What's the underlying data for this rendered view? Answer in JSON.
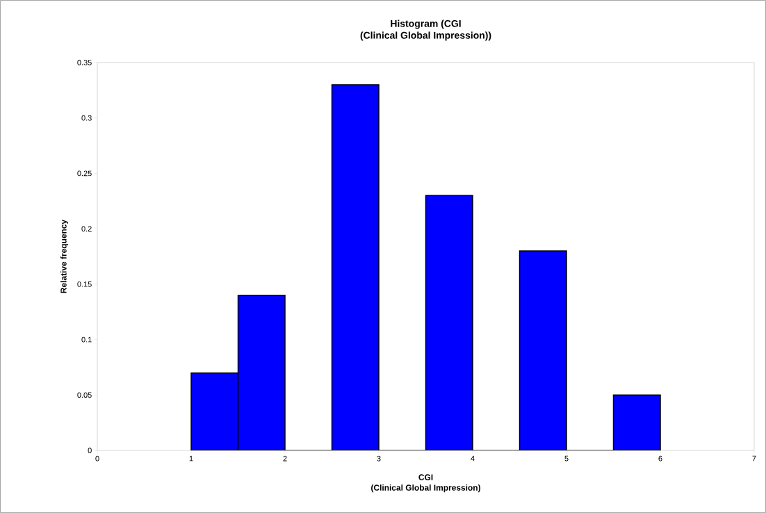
{
  "chart_data": {
    "type": "histogram",
    "title": "Histogram (CGI\n(Clinical Global Impression))",
    "xlabel": "CGI\n(Clinical Global Impression)",
    "ylabel": "Relative frequency",
    "bins": [
      1,
      1.5,
      2,
      2.5,
      3,
      3.5,
      4,
      4.5,
      5,
      5.5,
      6
    ],
    "values": [
      0.07,
      0.14,
      0,
      0.33,
      0,
      0.23,
      0,
      0.18,
      0,
      0.05
    ],
    "color": "#0000ff",
    "xlim": [
      0,
      7
    ],
    "xticks": [
      0,
      1,
      2,
      3,
      4,
      5,
      6,
      7
    ],
    "ylim": [
      0,
      0.35
    ],
    "yticks": [
      0,
      0.05,
      0.1,
      0.15,
      0.2,
      0.25,
      0.3,
      0.35
    ],
    "grid": false
  }
}
